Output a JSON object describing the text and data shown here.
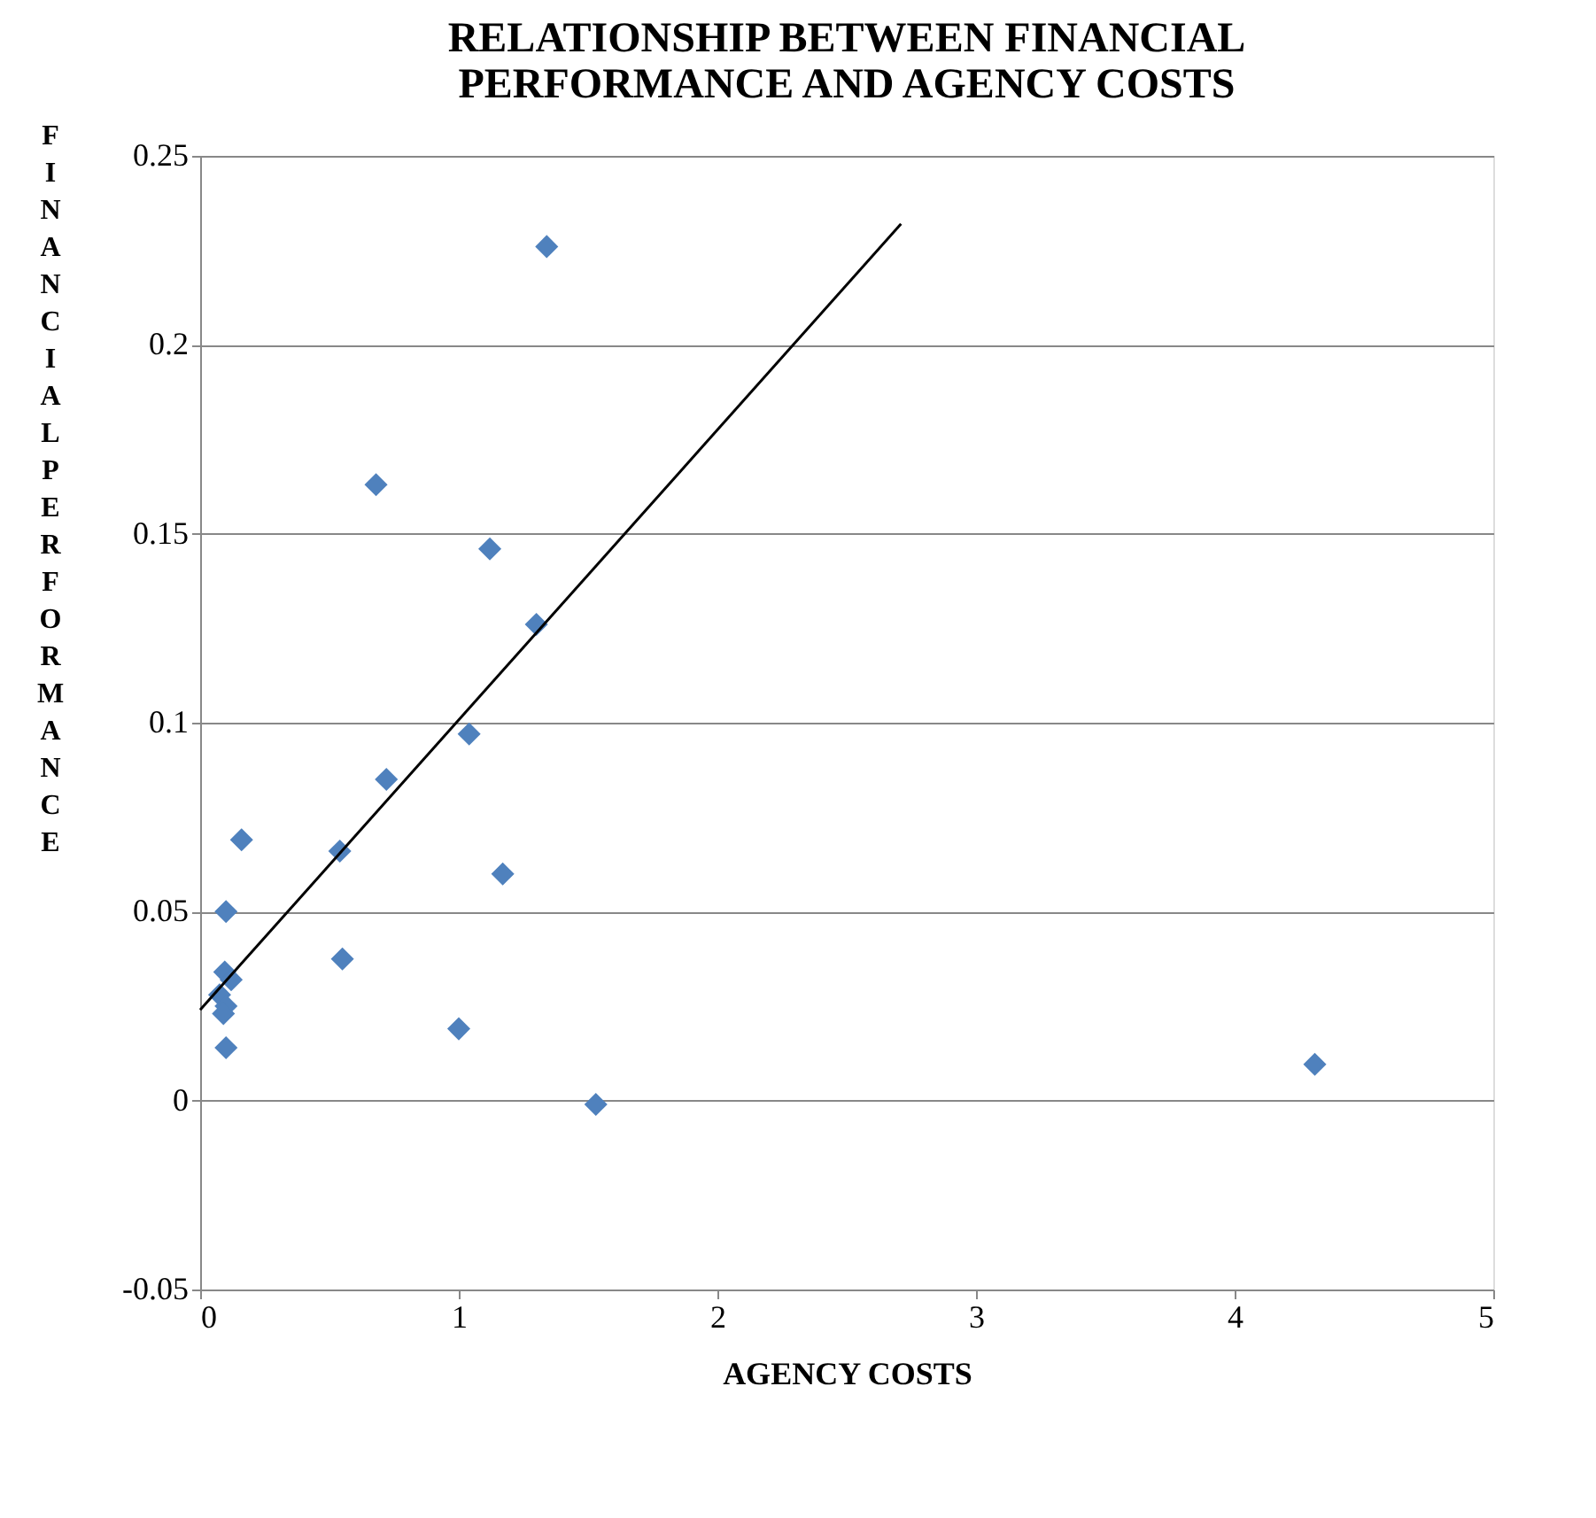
{
  "chart_data": {
    "type": "scatter",
    "title": "RELATIONSHIP BETWEEN FINANCIAL PERFORMANCE AND AGENCY COSTS",
    "xlabel": "AGENCY COSTS",
    "ylabel": "FINANCIAL PERFORMANCE",
    "grid": "y",
    "xlim": [
      0,
      5
    ],
    "xticks": [
      0,
      1,
      2,
      3,
      4,
      5
    ],
    "ylim": [
      -0.05,
      0.25
    ],
    "yticks": [
      -0.05,
      0,
      0.05,
      0.1,
      0.15,
      0.2,
      0.25
    ],
    "series": [
      {
        "color": "#4f81bd",
        "marker": "diamond",
        "x": [
          1.34,
          0.68,
          1.12,
          1.3,
          1.04,
          0.72,
          0.16,
          0.54,
          1.17,
          0.1,
          0.55,
          0.095,
          0.12,
          0.075,
          0.1,
          0.09,
          0.1,
          1.0,
          1.53,
          4.31
        ],
        "values": [
          0.226,
          0.163,
          0.146,
          0.126,
          0.097,
          0.085,
          0.069,
          0.066,
          0.06,
          0.05,
          0.0375,
          0.034,
          0.032,
          0.028,
          0.025,
          0.023,
          0.014,
          0.019,
          -0.001,
          0.0096
        ]
      },
      {
        "type": "line",
        "color": "#000000",
        "line_style": "solid",
        "marker": "none",
        "x": [
          0,
          2.71
        ],
        "values": [
          0.024,
          0.232
        ]
      }
    ]
  }
}
